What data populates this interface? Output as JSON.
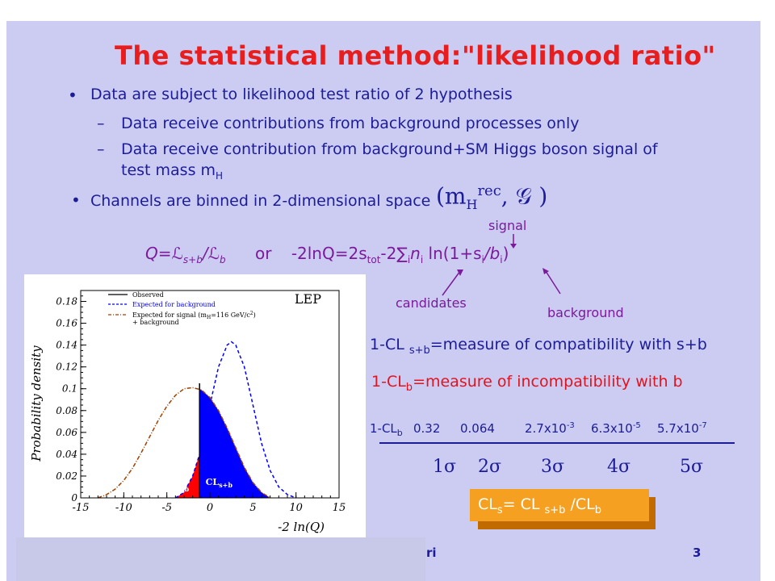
{
  "slide": {
    "title": "The statistical method:\"likelihood ratio\"",
    "bullets": [
      {
        "text": "Data are subject to likelihood test ratio of 2 hypothesis"
      },
      {
        "text": "Channels are binned in 2-dimensional space"
      }
    ],
    "subbullets": [
      "Data receive contributions from background processes only",
      "Data receive contribution from background+SM Higgs boson signal of",
      "test mass m"
    ],
    "mass_sub": "H",
    "space_formula": "(m",
    "space_sub": "H",
    "space_sup": "rec",
    "space_rest": ", 𝒢 )",
    "annotations": {
      "signal": "signal",
      "candidates": "candidates",
      "background": "background"
    },
    "formula_q": "Q=ℒ",
    "formula_q_sub1": "s+b",
    "formula_q_div": "/ℒ",
    "formula_q_sub2": "b",
    "formula_or": "or",
    "formula_ln": "-2lnQ=2s",
    "formula_ln_sub": "tot",
    "formula_ln_rest": "-2∑",
    "formula_sum_sub": "i",
    "formula_n": "n",
    "formula_n_sub": "i",
    "formula_log": " ln(1+s",
    "formula_s_sub": "i",
    "formula_b": "/b",
    "formula_b_sub": "i",
    "formula_close": ")",
    "cl_sb_line": {
      "pre": "1-CL ",
      "sub": "s+b",
      "post": "=measure of compatibility with s+b"
    },
    "cl_b_line": {
      "pre": "1-CL",
      "sub": "b",
      "post": "=measure of incompatibility with b"
    },
    "table": {
      "label_pre": "1-CL",
      "label_sub": "b",
      "values": [
        "0.32",
        "0.064",
        "2.7x10",
        "6.3x10",
        "5.7x10"
      ],
      "exponents": [
        "",
        "",
        "-3",
        "-5",
        "-7"
      ],
      "sigmas": [
        "1σ",
        "2σ",
        "3σ",
        "4σ",
        "5σ"
      ]
    },
    "cls_formula": {
      "a": "CL",
      "a_sub": "s",
      "b": "= CL ",
      "b_sub": "s+b",
      "c": " /CL",
      "c_sub": "b"
    },
    "footer_fragment": "ri",
    "page_number": "3"
  },
  "colors": {
    "slide_bg": "#ccccf3",
    "title": "#e81e1e",
    "text": "#1c1c98",
    "annotation": "#7b1a9a",
    "cls_box": "#f5a020",
    "observed": "#000000",
    "background_curve": "#0000ff",
    "signal_curve": "#a04000",
    "cl_b_fill": "#ff0000",
    "cl_sb_fill": "#0000ff"
  },
  "chart_data": {
    "type": "line",
    "xlabel": "-2 ln(Q)",
    "ylabel": "Probability density",
    "xlim": [
      -15,
      15
    ],
    "ylim": [
      0,
      0.19
    ],
    "xticks": [
      -15,
      -10,
      -5,
      0,
      5,
      10,
      15
    ],
    "yticks": [
      0,
      0.02,
      0.04,
      0.06,
      0.08,
      0.1,
      0.12,
      0.14,
      0.16,
      0.18
    ],
    "corner_label": "LEP",
    "legend": [
      {
        "label": "Observed",
        "style": "solid"
      },
      {
        "label": "Expected for background",
        "style": "dashed"
      },
      {
        "label": "Expected for signal (m",
        "sub": "H",
        "rest": "=116 GeV/c",
        "sup": "2",
        "close": ")",
        "style": "dashdot"
      },
      {
        "label": "+ background",
        "style": "none"
      }
    ],
    "observed_x": -1.2,
    "series": [
      {
        "name": "Expected for background",
        "x": [
          -4,
          -3,
          -2,
          -1,
          0,
          1,
          2,
          2.5,
          3,
          4,
          5,
          6,
          7,
          8,
          9,
          10
        ],
        "y": [
          0.0,
          0.005,
          0.02,
          0.045,
          0.085,
          0.12,
          0.14,
          0.143,
          0.14,
          0.12,
          0.085,
          0.05,
          0.025,
          0.01,
          0.003,
          0.0
        ]
      },
      {
        "name": "Expected for signal (m_H=116 GeV/c^2) + background",
        "x": [
          -13,
          -12,
          -11,
          -10,
          -9,
          -8,
          -7,
          -6,
          -5,
          -4,
          -3,
          -2,
          -1,
          0,
          1,
          2,
          3,
          4,
          5,
          6,
          7
        ],
        "y": [
          0.0,
          0.003,
          0.008,
          0.016,
          0.027,
          0.041,
          0.056,
          0.071,
          0.084,
          0.094,
          0.1,
          0.101,
          0.099,
          0.092,
          0.08,
          0.064,
          0.046,
          0.028,
          0.014,
          0.005,
          0.0
        ]
      }
    ],
    "fill_labels": {
      "cl_b": "CL",
      "cl_b_sub": "b",
      "cl_sb": "CL",
      "cl_sb_sub": "s+b"
    }
  }
}
